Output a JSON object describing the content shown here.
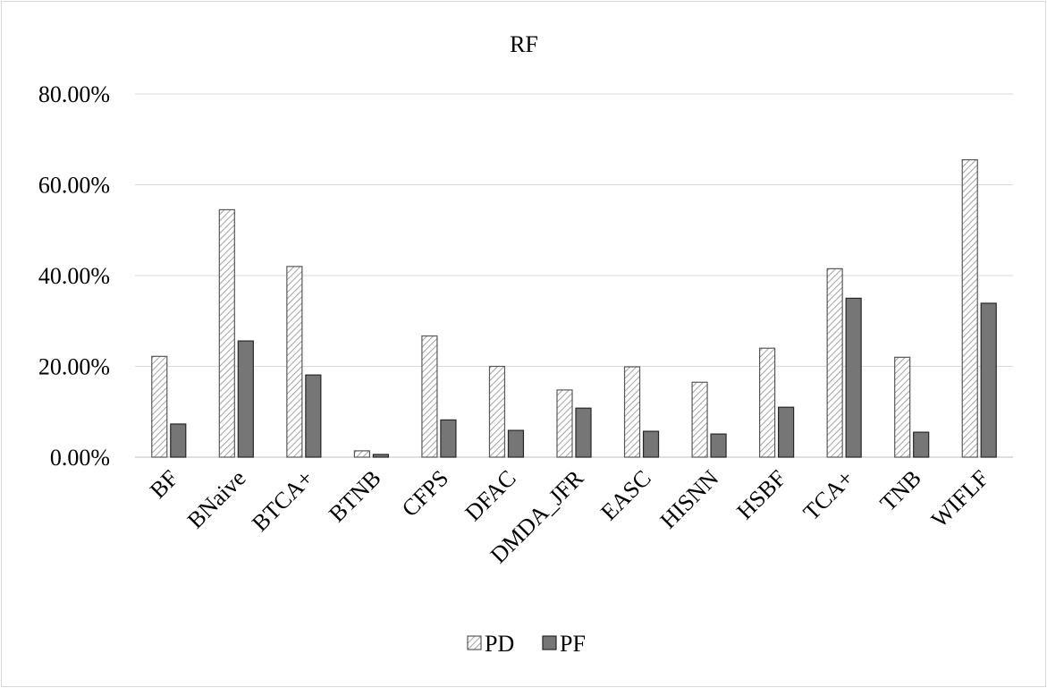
{
  "chart_data": {
    "type": "bar",
    "title": "RF",
    "xlabel": "",
    "ylabel": "",
    "ylim": [
      0,
      80
    ],
    "y_ticks": [
      "0.00%",
      "20.00%",
      "40.00%",
      "60.00%",
      "80.00%"
    ],
    "y_tick_values": [
      0,
      20,
      40,
      60,
      80
    ],
    "grid": true,
    "legend_position": "bottom",
    "categories": [
      "BF",
      "BNaive",
      "BTCA+",
      "BTNB",
      "CFPS",
      "DFAC",
      "DMDA_JFR",
      "EASC",
      "HISNN",
      "HSBF",
      "TCA+",
      "TNB",
      "WIFLF"
    ],
    "series": [
      {
        "name": "PD",
        "pattern": "diagonal-hatch",
        "color": "#7f7f7f",
        "values": [
          22.2,
          54.5,
          42.0,
          1.4,
          26.7,
          20.0,
          14.8,
          19.9,
          16.5,
          24.0,
          41.5,
          22.0,
          65.5
        ]
      },
      {
        "name": "PF",
        "pattern": "solid",
        "color": "#767676",
        "values": [
          7.3,
          25.6,
          18.1,
          0.6,
          8.2,
          5.9,
          10.8,
          5.7,
          5.1,
          11.0,
          35.0,
          5.5,
          33.9
        ]
      }
    ]
  }
}
